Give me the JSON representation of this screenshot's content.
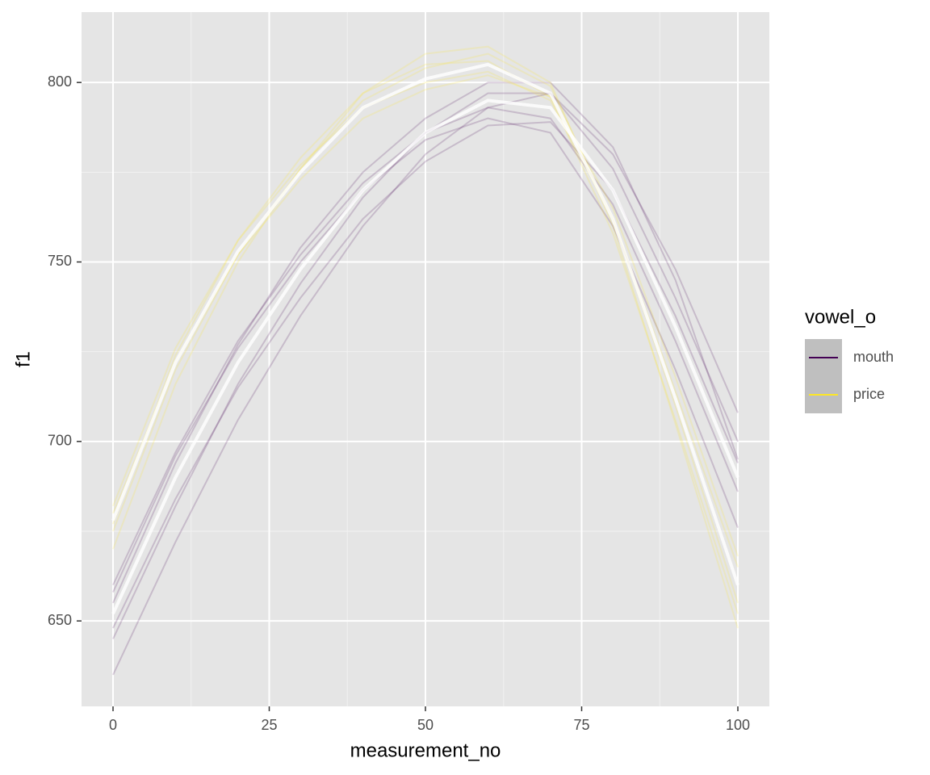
{
  "chart_data": {
    "type": "line",
    "x_label": "measurement_no",
    "y_label": "f1",
    "legend_title": "vowel_o",
    "legend_position": "right",
    "x": [
      0,
      10,
      20,
      30,
      40,
      50,
      60,
      70,
      80,
      90,
      100
    ],
    "xlim": [
      -5.04,
      105.04
    ],
    "xticks": [
      0,
      25,
      50,
      75,
      100
    ],
    "x_minor_ticks": [
      12.5,
      37.5,
      62.5,
      87.5
    ],
    "ylim": [
      626.2,
      819.6
    ],
    "yticks": [
      650,
      700,
      750,
      800
    ],
    "y_minor_ticks": [
      675,
      725,
      775
    ],
    "grid": true,
    "series": [
      {
        "name": "mouth",
        "color": "#440154",
        "values": [
          652,
          690,
          722,
          748,
          770,
          786,
          795,
          793,
          770,
          732,
          690
        ],
        "lines": [
          [
            645,
            682,
            716,
            744,
            768,
            786,
            797,
            797,
            776,
            740,
            700
          ],
          [
            660,
            697,
            728,
            752,
            772,
            786,
            793,
            790,
            766,
            728,
            686
          ],
          [
            635,
            672,
            706,
            735,
            760,
            780,
            793,
            797,
            780,
            748,
            708
          ],
          [
            655,
            694,
            727,
            754,
            775,
            790,
            800,
            800,
            782,
            745,
            695
          ],
          [
            648,
            684,
            715,
            740,
            762,
            778,
            788,
            789,
            770,
            735,
            694
          ],
          [
            658,
            696,
            726,
            750,
            770,
            784,
            790,
            786,
            760,
            720,
            676
          ]
        ]
      },
      {
        "name": "price",
        "color": "#FDE725",
        "values": [
          678,
          722,
          753,
          775,
          793,
          801,
          805,
          797,
          762,
          712,
          660
        ],
        "lines": [
          [
            675,
            720,
            752,
            776,
            795,
            804,
            808,
            799,
            762,
            710,
            655
          ],
          [
            682,
            726,
            756,
            777,
            793,
            800,
            803,
            795,
            762,
            714,
            665
          ],
          [
            670,
            716,
            750,
            776,
            797,
            808,
            810,
            800,
            760,
            705,
            648
          ],
          [
            680,
            722,
            752,
            773,
            790,
            798,
            802,
            796,
            765,
            718,
            668
          ],
          [
            677,
            724,
            756,
            779,
            797,
            805,
            806,
            796,
            758,
            706,
            652
          ]
        ]
      }
    ]
  }
}
